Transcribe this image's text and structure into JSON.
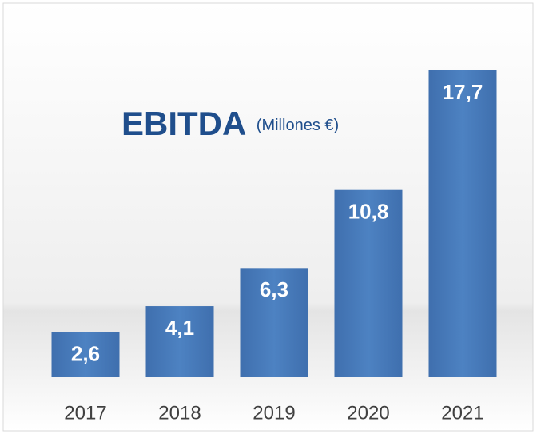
{
  "chart_data": {
    "type": "bar",
    "title": "EBITDA",
    "subtitle": "(Millones €)",
    "categories": [
      "2017",
      "2018",
      "2019",
      "2020",
      "2021"
    ],
    "values": [
      2.6,
      4.1,
      6.3,
      10.8,
      17.7
    ],
    "value_labels": [
      "2,6",
      "4,1",
      "6,3",
      "10,8",
      "17,7"
    ],
    "color": "#4a7ebb"
  }
}
